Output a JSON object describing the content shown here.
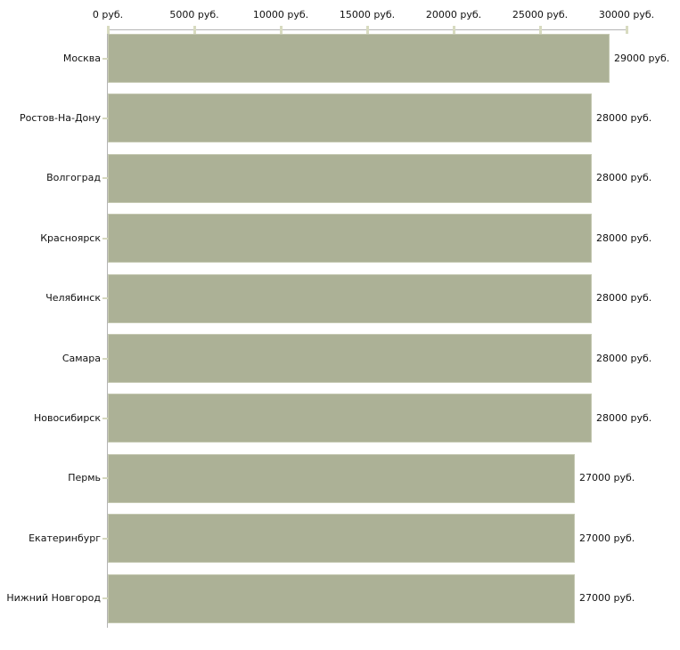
{
  "chart_data": {
    "type": "bar",
    "orientation": "horizontal",
    "title": "",
    "xlabel": "",
    "ylabel": "",
    "xlim": [
      0,
      30000
    ],
    "x_tick_interval": 5000,
    "x_ticks": [
      0,
      5000,
      10000,
      15000,
      20000,
      25000,
      30000
    ],
    "x_tick_labels": [
      "0 руб.",
      "5000 руб.",
      "10000 руб.",
      "15000 руб.",
      "20000 руб.",
      "25000 руб.",
      "30000 руб."
    ],
    "categories": [
      "Москва",
      "Ростов-На-Дону",
      "Волгоград",
      "Красноярск",
      "Челябинск",
      "Самара",
      "Новосибирск",
      "Пермь",
      "Екатеринбург",
      "Нижний Новгород"
    ],
    "values": [
      29000,
      28000,
      28000,
      28000,
      28000,
      28000,
      28000,
      27000,
      27000,
      27000
    ],
    "value_labels": [
      "29000 руб.",
      "28000 руб.",
      "28000 руб.",
      "28000 руб.",
      "28000 руб.",
      "28000 руб.",
      "28000 руб.",
      "27000 руб.",
      "27000 руб.",
      "27000 руб."
    ],
    "legend": "none",
    "grid": "off",
    "colors": {
      "bar_fill": "#acb196",
      "bar_border": "#c5c9b2",
      "axis_line": "#b4b4b4",
      "x_tick_mark": "#d8dbc0",
      "category_tick_mark": "#d6d8be",
      "text": "#111111",
      "background": "#ffffff"
    }
  }
}
